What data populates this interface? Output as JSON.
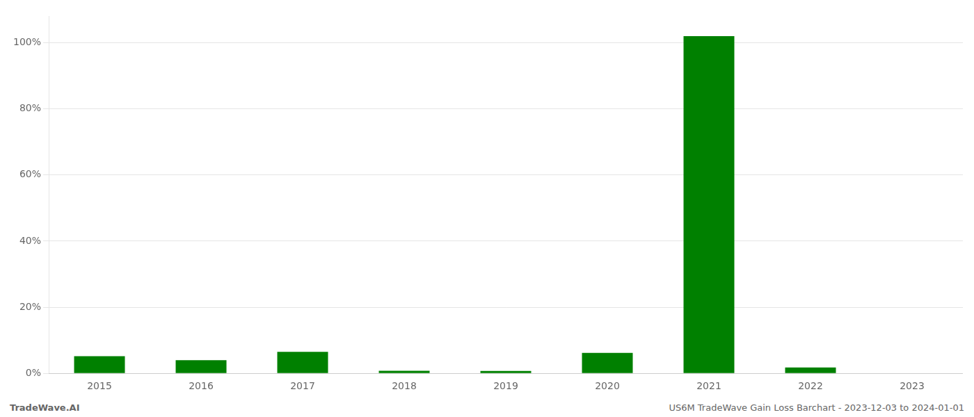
{
  "chart_data": {
    "type": "bar",
    "categories": [
      "2015",
      "2016",
      "2017",
      "2018",
      "2019",
      "2020",
      "2021",
      "2022",
      "2023"
    ],
    "values": [
      5.2,
      4.0,
      6.5,
      0.8,
      0.7,
      6.2,
      102.0,
      1.8,
      0.1
    ],
    "color": "#008000",
    "ylim": [
      0,
      108
    ],
    "yticks": [
      {
        "value": 0,
        "label": "0%"
      },
      {
        "value": 20,
        "label": "20%"
      },
      {
        "value": 40,
        "label": "40%"
      },
      {
        "value": 60,
        "label": "60%"
      },
      {
        "value": 80,
        "label": "80%"
      },
      {
        "value": 100,
        "label": "100%"
      }
    ],
    "grid": true,
    "annotations": [
      "TradeWave.AI",
      "US6M TradeWave Gain Loss Barchart - 2023-12-03 to 2024-01-01"
    ]
  }
}
